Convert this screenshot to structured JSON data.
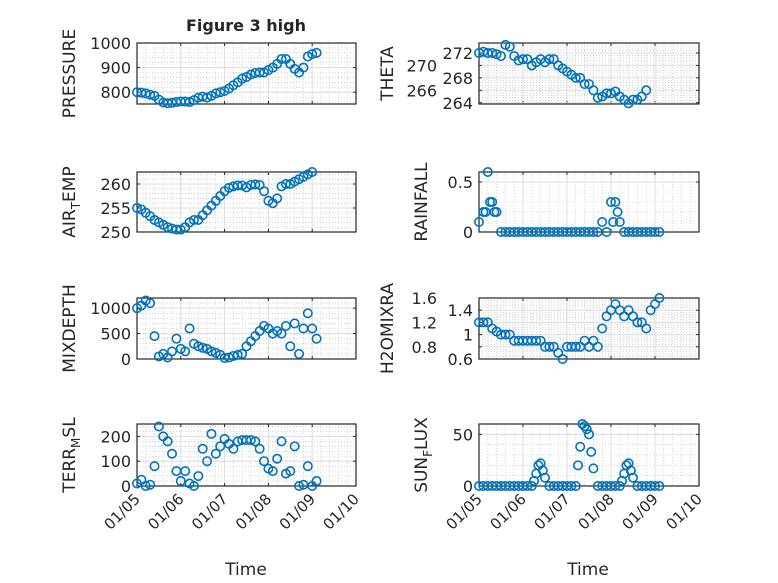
{
  "figure": {
    "title": "Figure 3 high",
    "xlabel": "Time"
  },
  "chart_data": {
    "type": "scatter",
    "title": "Figure 3 high",
    "xlabel": "Time",
    "x_unit": "days since 01/05",
    "xticks": [
      0,
      1,
      2,
      3,
      4,
      5
    ],
    "xticklabels": [
      "01/05",
      "01/06",
      "01/07",
      "01/08",
      "01/09",
      "01/10"
    ],
    "xlim": [
      0,
      5
    ],
    "marker_color": "#0072BD",
    "grid": true,
    "panels": [
      {
        "name": "pressure",
        "ylabel": {
          "main": "PRESSURE",
          "sub": "",
          "rest": ""
        },
        "ylim": [
          752,
          1000
        ],
        "yticks": [
          800,
          900,
          1000
        ],
        "yticklabels": [
          "800",
          "900",
          "1000"
        ],
        "x": [
          0,
          0.1,
          0.2,
          0.3,
          0.4,
          0.5,
          0.6,
          0.7,
          0.8,
          0.9,
          1,
          1.1,
          1.2,
          1.3,
          1.4,
          1.5,
          1.6,
          1.7,
          1.8,
          1.9,
          2,
          2.1,
          2.2,
          2.3,
          2.4,
          2.5,
          2.6,
          2.7,
          2.8,
          2.9,
          3,
          3.1,
          3.2,
          3.3,
          3.4,
          3.5,
          3.6,
          3.7,
          3.8,
          3.9,
          4,
          4.1
        ],
        "y": [
          800,
          798,
          795,
          790,
          785,
          770,
          758,
          755,
          757,
          760,
          762,
          762,
          760,
          768,
          778,
          782,
          778,
          785,
          795,
          800,
          805,
          815,
          828,
          840,
          855,
          862,
          872,
          878,
          880,
          880,
          890,
          900,
          915,
          935,
          935,
          915,
          895,
          880,
          900,
          945,
          955,
          960
        ]
      },
      {
        "name": "theta",
        "ylabel": {
          "main": "THETA",
          "sub": "",
          "rest": ""
        },
        "ylim": [
          263.8,
          273.6
        ],
        "yticks": [
          264,
          266,
          268,
          270,
          272
        ],
        "yticklabels": [
          "264",
          "266",
          "268",
          "270",
          "272"
        ],
        "x": [
          0,
          0.1,
          0.2,
          0.3,
          0.4,
          0.5,
          0.6,
          0.7,
          0.8,
          0.9,
          1,
          1.1,
          1.2,
          1.3,
          1.4,
          1.5,
          1.6,
          1.7,
          1.8,
          1.9,
          2,
          2.1,
          2.2,
          2.3,
          2.4,
          2.5,
          2.6,
          2.7,
          2.8,
          2.9,
          3,
          3.1,
          3.2,
          3.3,
          3.4,
          3.5,
          3.6,
          3.7,
          3.8
        ],
        "y": [
          272,
          272.2,
          272,
          272,
          271.8,
          271.5,
          273.3,
          273,
          271.5,
          270.8,
          271,
          271,
          270,
          270.5,
          271,
          270.5,
          271,
          271,
          270,
          269.5,
          269,
          268.5,
          268,
          268,
          267,
          267,
          266,
          264.8,
          265,
          265.5,
          265.5,
          265.8,
          265,
          264.5,
          263.9,
          264.5,
          264.5,
          265,
          266
        ]
      },
      {
        "name": "air_temp",
        "ylabel": {
          "main": "AIR",
          "sub": "T",
          "rest": "EMP"
        },
        "ylim": [
          250,
          262.5
        ],
        "yticks": [
          250,
          255,
          260
        ],
        "yticklabels": [
          "250",
          "255",
          "260"
        ],
        "x": [
          0,
          0.1,
          0.2,
          0.3,
          0.4,
          0.5,
          0.6,
          0.7,
          0.8,
          0.9,
          1,
          1.1,
          1.2,
          1.3,
          1.4,
          1.5,
          1.6,
          1.7,
          1.8,
          1.9,
          2,
          2.1,
          2.2,
          2.3,
          2.4,
          2.5,
          2.6,
          2.7,
          2.8,
          2.9,
          3,
          3.1,
          3.2,
          3.3,
          3.4,
          3.5,
          3.6,
          3.7,
          3.8,
          3.9,
          4
        ],
        "y": [
          255,
          254.7,
          254,
          253.3,
          252.5,
          252,
          251.5,
          251,
          250.7,
          250.5,
          250.5,
          251,
          252,
          252.5,
          252.5,
          253.5,
          254.5,
          255.5,
          256.5,
          257.5,
          258.5,
          259.2,
          259.5,
          259.7,
          259.7,
          259.3,
          259.8,
          259.9,
          259.8,
          258.5,
          256.5,
          256,
          257,
          259.5,
          260,
          260,
          260.5,
          261,
          261.5,
          262,
          262.5
        ]
      },
      {
        "name": "rainfall",
        "ylabel": {
          "main": "RAINFALL",
          "sub": "",
          "rest": ""
        },
        "ylim": [
          0,
          0.6
        ],
        "yticks": [
          0,
          0.5
        ],
        "yticklabels": [
          "0",
          "0.5"
        ],
        "x": [
          0,
          0.1,
          0.15,
          0.2,
          0.25,
          0.3,
          0.35,
          0.4,
          0.5,
          0.6,
          0.7,
          0.8,
          0.9,
          1,
          1.1,
          1.2,
          1.3,
          1.4,
          1.5,
          1.6,
          1.7,
          1.8,
          1.9,
          2,
          2.1,
          2.2,
          2.3,
          2.4,
          2.5,
          2.6,
          2.7,
          2.8,
          2.9,
          3,
          3.05,
          3.1,
          3.15,
          3.2,
          3.3,
          3.4,
          3.5,
          3.6,
          3.7,
          3.8,
          3.9,
          4,
          4.1
        ],
        "y": [
          0.1,
          0.2,
          0.2,
          0.6,
          0.3,
          0.3,
          0.2,
          0.2,
          0,
          0,
          0,
          0,
          0,
          0,
          0,
          0,
          0,
          0,
          0,
          0,
          0,
          0,
          0,
          0,
          0,
          0,
          0,
          0,
          0,
          0,
          0,
          0.1,
          0,
          0.3,
          0.1,
          0.3,
          0.2,
          0.1,
          0,
          0,
          0,
          0,
          0,
          0,
          0,
          0,
          0
        ]
      },
      {
        "name": "mixdepth",
        "ylabel": {
          "main": "MIXDEPTH",
          "sub": "",
          "rest": ""
        },
        "ylim": [
          0,
          1200
        ],
        "yticks": [
          0,
          500,
          1000
        ],
        "yticklabels": [
          "0",
          "500",
          "1000"
        ],
        "x": [
          0,
          0.1,
          0.2,
          0.3,
          0.4,
          0.5,
          0.6,
          0.7,
          0.8,
          0.9,
          1,
          1.1,
          1.2,
          1.3,
          1.4,
          1.5,
          1.6,
          1.7,
          1.8,
          1.9,
          2,
          2.1,
          2.2,
          2.3,
          2.4,
          2.5,
          2.6,
          2.7,
          2.8,
          2.9,
          3,
          3.1,
          3.2,
          3.3,
          3.4,
          3.5,
          3.6,
          3.7,
          3.8,
          3.9,
          4,
          4.1
        ],
        "y": [
          1000,
          1050,
          1150,
          1100,
          450,
          50,
          100,
          30,
          150,
          400,
          200,
          150,
          600,
          300,
          250,
          220,
          200,
          150,
          120,
          80,
          20,
          30,
          60,
          80,
          100,
          250,
          350,
          450,
          550,
          650,
          600,
          500,
          550,
          500,
          650,
          250,
          700,
          100,
          600,
          900,
          600,
          400
        ]
      },
      {
        "name": "h2omixra",
        "ylabel": {
          "main": "H2OMIXRA",
          "sub": "",
          "rest": ""
        },
        "ylim": [
          0.6,
          1.6
        ],
        "yticks": [
          0.6,
          0.8,
          1,
          1.2,
          1.4,
          1.6
        ],
        "yticklabels": [
          "0.6",
          "0.8",
          "1",
          "1.2",
          "1.4",
          "1.6"
        ],
        "x": [
          0,
          0.1,
          0.2,
          0.3,
          0.4,
          0.5,
          0.6,
          0.7,
          0.8,
          0.9,
          1,
          1.1,
          1.2,
          1.3,
          1.4,
          1.5,
          1.6,
          1.7,
          1.8,
          1.9,
          2,
          2.1,
          2.2,
          2.3,
          2.4,
          2.5,
          2.6,
          2.7,
          2.8,
          2.9,
          3,
          3.1,
          3.2,
          3.3,
          3.4,
          3.5,
          3.6,
          3.7,
          3.8,
          3.9,
          4,
          4.1
        ],
        "y": [
          1.2,
          1.2,
          1.2,
          1.1,
          1.05,
          1,
          1,
          1,
          0.9,
          0.9,
          0.9,
          0.9,
          0.9,
          0.9,
          0.9,
          0.8,
          0.8,
          0.8,
          0.7,
          0.6,
          0.8,
          0.8,
          0.8,
          0.8,
          0.9,
          0.8,
          0.9,
          0.8,
          1.1,
          1.3,
          1.4,
          1.5,
          1.4,
          1.3,
          1.4,
          1.3,
          1.2,
          1.2,
          1.1,
          1.4,
          1.5,
          1.6
        ]
      },
      {
        "name": "terr_msl",
        "ylabel": {
          "main": "TERR",
          "sub": "M",
          "rest": "SL"
        },
        "ylim": [
          0,
          250
        ],
        "yticks": [
          0,
          100,
          200
        ],
        "yticklabels": [
          "0",
          "100",
          "200"
        ],
        "x": [
          0,
          0.1,
          0.2,
          0.3,
          0.4,
          0.5,
          0.6,
          0.7,
          0.8,
          0.9,
          1,
          1.1,
          1.2,
          1.3,
          1.4,
          1.5,
          1.6,
          1.7,
          1.8,
          1.9,
          2,
          2.1,
          2.2,
          2.3,
          2.4,
          2.5,
          2.6,
          2.7,
          2.8,
          2.9,
          3,
          3.1,
          3.2,
          3.3,
          3.4,
          3.5,
          3.6,
          3.7,
          3.8,
          3.9,
          4,
          4.1
        ],
        "y": [
          10,
          25,
          0,
          5,
          80,
          240,
          200,
          180,
          130,
          60,
          20,
          60,
          10,
          0,
          40,
          150,
          100,
          210,
          130,
          160,
          190,
          170,
          150,
          180,
          185,
          185,
          185,
          180,
          150,
          100,
          70,
          60,
          110,
          180,
          50,
          60,
          160,
          0,
          5,
          80,
          0,
          20
        ]
      },
      {
        "name": "sun_flux",
        "ylabel": {
          "main": "SUN",
          "sub": "F",
          "rest": "LUX"
        },
        "ylim": [
          0,
          60
        ],
        "yticks": [
          0,
          50
        ],
        "yticklabels": [
          "0",
          "50"
        ],
        "x": [
          0,
          0.1,
          0.2,
          0.3,
          0.4,
          0.5,
          0.6,
          0.7,
          0.8,
          0.9,
          1,
          1.1,
          1.2,
          1.25,
          1.3,
          1.35,
          1.4,
          1.45,
          1.5,
          1.6,
          1.7,
          1.8,
          1.9,
          2,
          2.1,
          2.2,
          2.25,
          2.3,
          2.35,
          2.4,
          2.45,
          2.5,
          2.55,
          2.6,
          2.7,
          2.8,
          2.9,
          3,
          3.1,
          3.2,
          3.25,
          3.3,
          3.35,
          3.4,
          3.45,
          3.5,
          3.6,
          3.7,
          3.8,
          3.9,
          4,
          4.1
        ],
        "y": [
          0,
          0,
          0,
          0,
          0,
          0,
          0,
          0,
          0,
          0,
          0,
          0,
          0,
          5,
          12,
          20,
          22,
          15,
          8,
          0,
          0,
          0,
          0,
          0,
          0,
          0,
          20,
          38,
          60,
          58,
          55,
          50,
          33,
          17,
          0,
          0,
          0,
          0,
          0,
          0,
          5,
          12,
          20,
          22,
          15,
          8,
          0,
          0,
          0,
          0,
          0,
          0
        ]
      }
    ]
  }
}
